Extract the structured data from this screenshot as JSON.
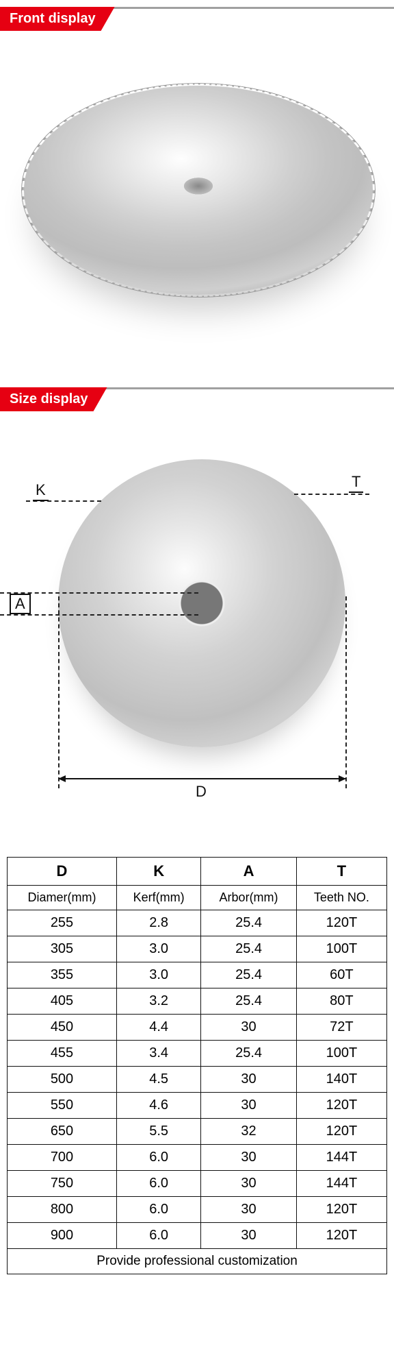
{
  "colors": {
    "accent": "#e60012",
    "header_rule": "#a0a0a0",
    "text": "#111111",
    "border": "#111111"
  },
  "sections": {
    "front": {
      "title": "Front display"
    },
    "size": {
      "title": "Size display"
    }
  },
  "diagram_labels": {
    "K": "K",
    "T": "T",
    "A": "A",
    "D": "D"
  },
  "table": {
    "header_syms": [
      "D",
      "K",
      "A",
      "T"
    ],
    "header_labels": [
      "Diamer(mm)",
      "Kerf(mm)",
      "Arbor(mm)",
      "Teeth NO."
    ],
    "rows": [
      [
        "255",
        "2.8",
        "25.4",
        "120T"
      ],
      [
        "305",
        "3.0",
        "25.4",
        "100T"
      ],
      [
        "355",
        "3.0",
        "25.4",
        "60T"
      ],
      [
        "405",
        "3.2",
        "25.4",
        "80T"
      ],
      [
        "450",
        "4.4",
        "30",
        "72T"
      ],
      [
        "455",
        "3.4",
        "25.4",
        "100T"
      ],
      [
        "500",
        "4.5",
        "30",
        "140T"
      ],
      [
        "550",
        "4.6",
        "30",
        "120T"
      ],
      [
        "650",
        "5.5",
        "32",
        "120T"
      ],
      [
        "700",
        "6.0",
        "30",
        "144T"
      ],
      [
        "750",
        "6.0",
        "30",
        "144T"
      ],
      [
        "800",
        "6.0",
        "30",
        "120T"
      ],
      [
        "900",
        "6.0",
        "30",
        "120T"
      ]
    ],
    "footer": "Provide professional customization",
    "col_widths_pct": [
      25,
      25,
      25,
      25
    ],
    "cell_fontsize": 20,
    "header_fontsize": 22,
    "border_color": "#111111"
  }
}
